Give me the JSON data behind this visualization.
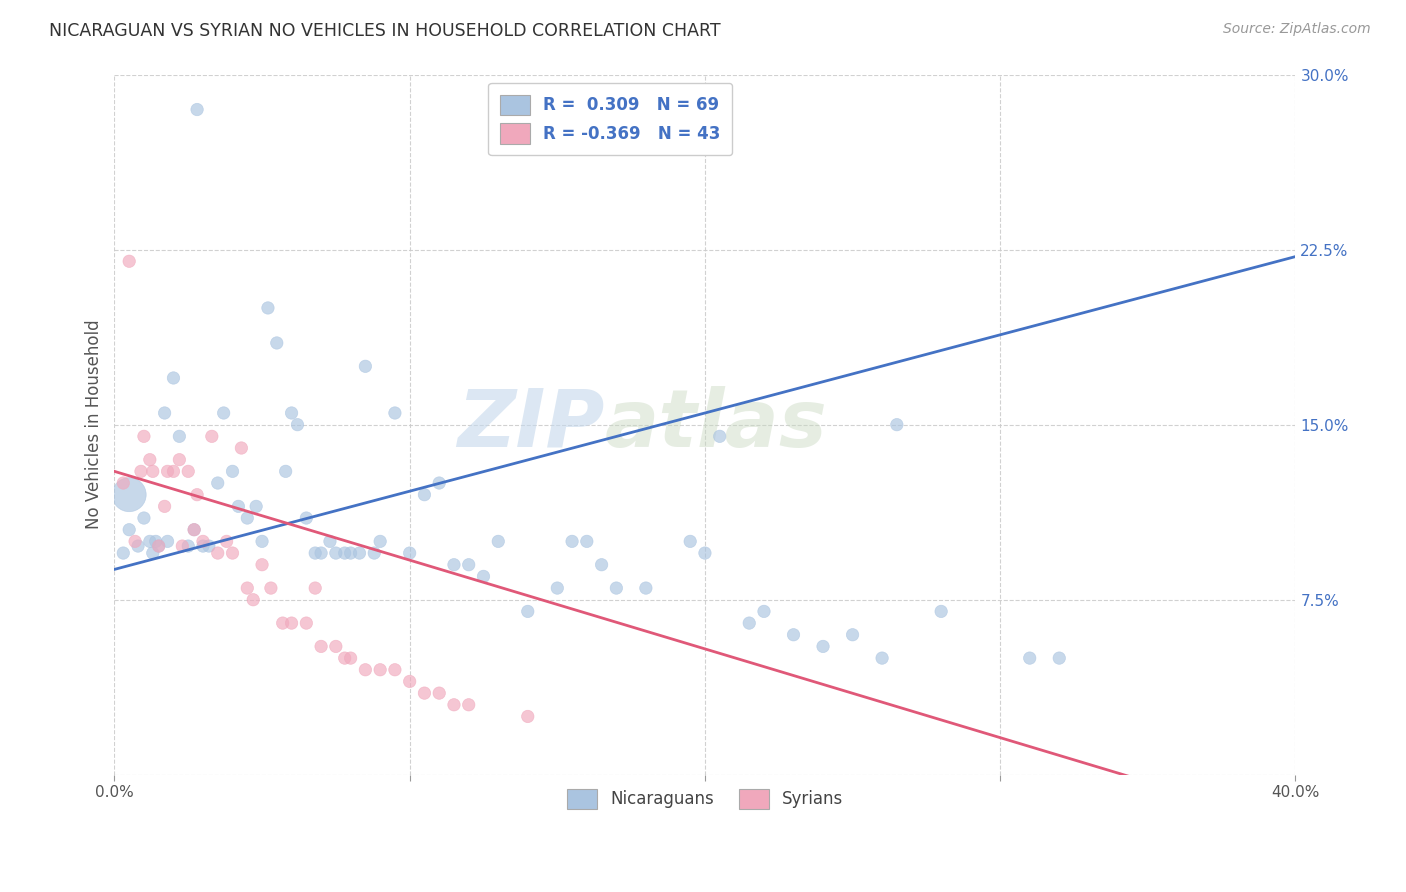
{
  "title": "NICARAGUAN VS SYRIAN NO VEHICLES IN HOUSEHOLD CORRELATION CHART",
  "source": "Source: ZipAtlas.com",
  "ylabel": "No Vehicles in Household",
  "xlim": [
    0.0,
    0.4
  ],
  "ylim": [
    0.0,
    0.3
  ],
  "xticks": [
    0.0,
    0.1,
    0.2,
    0.3,
    0.4
  ],
  "yticks": [
    0.0,
    0.075,
    0.15,
    0.225,
    0.3
  ],
  "xtick_labels": [
    "0.0%",
    "",
    "",
    "",
    "40.0%"
  ],
  "ytick_labels": [
    "",
    "7.5%",
    "15.0%",
    "22.5%",
    "30.0%"
  ],
  "watermark_part1": "ZIP",
  "watermark_part2": "atlas",
  "legend_labels": [
    "Nicaraguans",
    "Syrians"
  ],
  "legend_R": [
    "0.309",
    "-0.369"
  ],
  "legend_N": [
    "69",
    "43"
  ],
  "blue_color": "#aac4e0",
  "pink_color": "#f0a8bc",
  "blue_line_color": "#4472c4",
  "pink_line_color": "#e05878",
  "blue_scatter_x": [
    0.003,
    0.005,
    0.008,
    0.01,
    0.012,
    0.013,
    0.014,
    0.015,
    0.017,
    0.018,
    0.02,
    0.022,
    0.025,
    0.027,
    0.028,
    0.03,
    0.032,
    0.035,
    0.037,
    0.04,
    0.042,
    0.045,
    0.048,
    0.05,
    0.052,
    0.055,
    0.058,
    0.06,
    0.062,
    0.065,
    0.068,
    0.07,
    0.073,
    0.075,
    0.078,
    0.08,
    0.083,
    0.085,
    0.088,
    0.09,
    0.095,
    0.1,
    0.105,
    0.11,
    0.115,
    0.12,
    0.125,
    0.13,
    0.14,
    0.15,
    0.155,
    0.16,
    0.165,
    0.17,
    0.18,
    0.195,
    0.2,
    0.205,
    0.215,
    0.22,
    0.23,
    0.24,
    0.25,
    0.26,
    0.265,
    0.28,
    0.31,
    0.32,
    0.005
  ],
  "blue_scatter_y": [
    0.095,
    0.105,
    0.098,
    0.11,
    0.1,
    0.095,
    0.1,
    0.098,
    0.155,
    0.1,
    0.17,
    0.145,
    0.098,
    0.105,
    0.285,
    0.098,
    0.098,
    0.125,
    0.155,
    0.13,
    0.115,
    0.11,
    0.115,
    0.1,
    0.2,
    0.185,
    0.13,
    0.155,
    0.15,
    0.11,
    0.095,
    0.095,
    0.1,
    0.095,
    0.095,
    0.095,
    0.095,
    0.175,
    0.095,
    0.1,
    0.155,
    0.095,
    0.12,
    0.125,
    0.09,
    0.09,
    0.085,
    0.1,
    0.07,
    0.08,
    0.1,
    0.1,
    0.09,
    0.08,
    0.08,
    0.1,
    0.095,
    0.145,
    0.065,
    0.07,
    0.06,
    0.055,
    0.06,
    0.05,
    0.15,
    0.07,
    0.05,
    0.05,
    0.12
  ],
  "blue_scatter_s": [
    80,
    80,
    80,
    80,
    80,
    80,
    80,
    80,
    80,
    80,
    80,
    80,
    80,
    80,
    80,
    80,
    80,
    80,
    80,
    80,
    80,
    80,
    80,
    80,
    80,
    80,
    80,
    80,
    80,
    80,
    80,
    80,
    80,
    80,
    80,
    80,
    80,
    80,
    80,
    80,
    80,
    80,
    80,
    80,
    80,
    80,
    80,
    80,
    80,
    80,
    80,
    80,
    80,
    80,
    80,
    80,
    80,
    80,
    80,
    80,
    80,
    80,
    80,
    80,
    80,
    80,
    80,
    80,
    600
  ],
  "pink_scatter_x": [
    0.003,
    0.005,
    0.007,
    0.009,
    0.01,
    0.012,
    0.013,
    0.015,
    0.017,
    0.018,
    0.02,
    0.022,
    0.023,
    0.025,
    0.027,
    0.028,
    0.03,
    0.033,
    0.035,
    0.038,
    0.04,
    0.043,
    0.045,
    0.047,
    0.05,
    0.053,
    0.057,
    0.06,
    0.065,
    0.068,
    0.07,
    0.075,
    0.078,
    0.08,
    0.085,
    0.09,
    0.095,
    0.1,
    0.105,
    0.11,
    0.115,
    0.12,
    0.14
  ],
  "pink_scatter_y": [
    0.125,
    0.22,
    0.1,
    0.13,
    0.145,
    0.135,
    0.13,
    0.098,
    0.115,
    0.13,
    0.13,
    0.135,
    0.098,
    0.13,
    0.105,
    0.12,
    0.1,
    0.145,
    0.095,
    0.1,
    0.095,
    0.14,
    0.08,
    0.075,
    0.09,
    0.08,
    0.065,
    0.065,
    0.065,
    0.08,
    0.055,
    0.055,
    0.05,
    0.05,
    0.045,
    0.045,
    0.045,
    0.04,
    0.035,
    0.035,
    0.03,
    0.03,
    0.025
  ],
  "pink_scatter_s": [
    80,
    80,
    80,
    80,
    80,
    80,
    80,
    80,
    80,
    80,
    80,
    80,
    80,
    80,
    80,
    80,
    80,
    80,
    80,
    80,
    80,
    80,
    80,
    80,
    80,
    80,
    80,
    80,
    80,
    80,
    80,
    80,
    80,
    80,
    80,
    80,
    80,
    80,
    80,
    80,
    80,
    80,
    80
  ],
  "blue_trend": {
    "x_start": 0.0,
    "y_start": 0.088,
    "x_end": 0.4,
    "y_end": 0.222
  },
  "pink_trend": {
    "x_start": 0.0,
    "y_start": 0.13,
    "x_end": 0.355,
    "y_end": -0.005
  }
}
